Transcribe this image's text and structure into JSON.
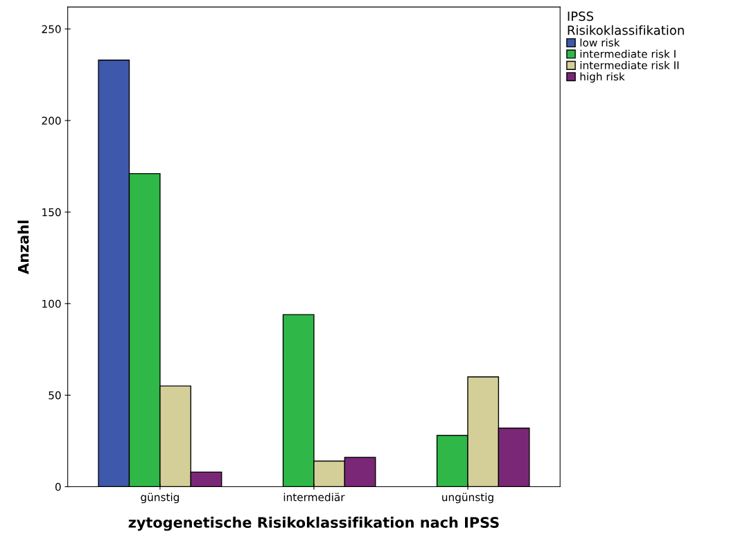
{
  "chart_data": {
    "type": "bar",
    "xlabel": "zytogenetische Risikoklassifikation nach IPSS",
    "ylabel": "Anzahl",
    "legend_title": "IPSS\nRisikoklassifikation",
    "categories": [
      "günstig",
      "intermediär",
      "ungünstig"
    ],
    "series": [
      {
        "name": "low risk",
        "color": "#3e58ab",
        "values": [
          233,
          null,
          null
        ]
      },
      {
        "name": "intermediate risk I",
        "color": "#2fb847",
        "values": [
          171,
          94,
          28
        ]
      },
      {
        "name": "intermediate risk II",
        "color": "#d4cf98",
        "values": [
          55,
          14,
          60
        ]
      },
      {
        "name": "high risk",
        "color": "#7b2777",
        "values": [
          8,
          16,
          32
        ]
      }
    ],
    "ylim": [
      0,
      262
    ],
    "yticks": [
      0,
      50,
      100,
      150,
      200,
      250
    ],
    "grid": false,
    "legend": "top right"
  }
}
